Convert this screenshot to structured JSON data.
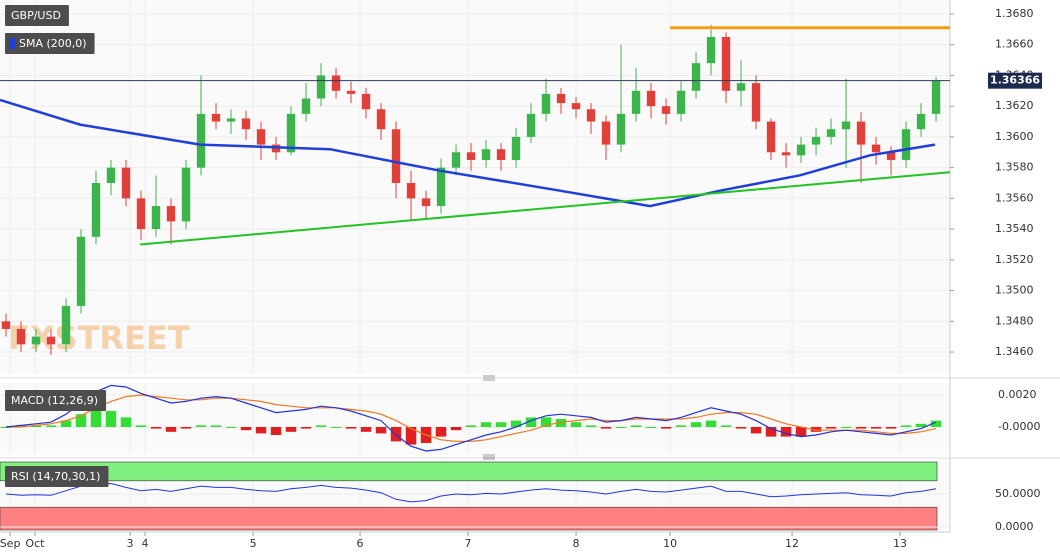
{
  "chart_data": [
    {
      "type": "candlestick",
      "title": "GBP/USD",
      "sma_label": "SMA (200,0)",
      "watermark": "FXSTREET",
      "up_color": "#3cb44b",
      "down_color": "#e0403a",
      "open": [
        1.348,
        1.3475,
        1.3465,
        1.347,
        1.3465,
        1.349,
        1.3535,
        1.357,
        1.358,
        1.356,
        1.354,
        1.3555,
        1.3545,
        1.358,
        1.3615,
        1.361,
        1.3612,
        1.3605,
        1.3595,
        1.359,
        1.3615,
        1.3625,
        1.364,
        1.363,
        1.3628,
        1.3618,
        1.3605,
        1.357,
        1.356,
        1.3555,
        1.358,
        1.359,
        1.3585,
        1.3592,
        1.3585,
        1.36,
        1.3615,
        1.3628,
        1.3622,
        1.3618,
        1.361,
        1.3595,
        1.3615,
        1.363,
        1.362,
        1.3615,
        1.363,
        1.3648,
        1.3665,
        1.363,
        1.3635,
        1.361,
        1.359,
        1.3588,
        1.3595,
        1.36,
        1.3605,
        1.361,
        1.3595,
        1.359,
        1.3585,
        1.3605,
        1.3615
      ],
      "high": [
        1.3485,
        1.348,
        1.3475,
        1.3475,
        1.3495,
        1.354,
        1.3578,
        1.3585,
        1.3585,
        1.3565,
        1.3575,
        1.356,
        1.3585,
        1.364,
        1.3622,
        1.3618,
        1.3617,
        1.361,
        1.36,
        1.362,
        1.3635,
        1.3648,
        1.3645,
        1.3636,
        1.3632,
        1.3622,
        1.361,
        1.3578,
        1.3565,
        1.3586,
        1.3595,
        1.3596,
        1.3598,
        1.3596,
        1.3606,
        1.3622,
        1.3638,
        1.3632,
        1.3626,
        1.3622,
        1.3614,
        1.366,
        1.3645,
        1.3635,
        1.3625,
        1.3636,
        1.3655,
        1.3673,
        1.3668,
        1.365,
        1.364,
        1.3612,
        1.3596,
        1.36,
        1.3606,
        1.3612,
        1.3638,
        1.3616,
        1.36,
        1.3594,
        1.361,
        1.3622,
        1.3639
      ],
      "low": [
        1.347,
        1.346,
        1.346,
        1.3458,
        1.346,
        1.3485,
        1.353,
        1.3562,
        1.3555,
        1.3533,
        1.3535,
        1.353,
        1.354,
        1.3575,
        1.3605,
        1.3602,
        1.3598,
        1.3585,
        1.3585,
        1.3588,
        1.361,
        1.362,
        1.3625,
        1.3622,
        1.3612,
        1.3598,
        1.356,
        1.3545,
        1.3546,
        1.355,
        1.3575,
        1.3578,
        1.358,
        1.3578,
        1.358,
        1.3596,
        1.361,
        1.3615,
        1.3612,
        1.3602,
        1.3585,
        1.359,
        1.361,
        1.3612,
        1.3608,
        1.361,
        1.3625,
        1.364,
        1.3622,
        1.362,
        1.3605,
        1.3585,
        1.358,
        1.3583,
        1.3588,
        1.3595,
        1.358,
        1.357,
        1.3582,
        1.3575,
        1.358,
        1.36,
        1.361
      ],
      "close": [
        1.3475,
        1.3465,
        1.347,
        1.3465,
        1.349,
        1.3535,
        1.357,
        1.358,
        1.356,
        1.354,
        1.3555,
        1.3545,
        1.358,
        1.3615,
        1.361,
        1.3612,
        1.3605,
        1.3595,
        1.359,
        1.3615,
        1.3625,
        1.364,
        1.363,
        1.3628,
        1.3618,
        1.3605,
        1.357,
        1.356,
        1.3555,
        1.358,
        1.359,
        1.3585,
        1.3592,
        1.3585,
        1.36,
        1.3615,
        1.3628,
        1.3622,
        1.3618,
        1.361,
        1.3595,
        1.3615,
        1.363,
        1.362,
        1.3615,
        1.363,
        1.3648,
        1.3665,
        1.363,
        1.3635,
        1.361,
        1.359,
        1.3588,
        1.3595,
        1.36,
        1.3605,
        1.361,
        1.3595,
        1.359,
        1.3585,
        1.3605,
        1.3615,
        1.36366
      ],
      "sma": {
        "color": "#1f3fd6",
        "x": [
          -0.4,
          4.93,
          12.93,
          21.6,
          28.93,
          36.93,
          42.93,
          47.6,
          52.93,
          57.6,
          61.93
        ],
        "values": [
          1.3624,
          1.3608,
          1.3595,
          1.3592,
          1.3578,
          1.3565,
          1.3555,
          1.3565,
          1.3575,
          1.3588,
          1.3595
        ]
      },
      "trendline": {
        "color": "#22c322",
        "x": [
          8.93,
          62.93
        ],
        "values": [
          1.353,
          1.3577
        ]
      },
      "resistance": {
        "color": "#f39c12",
        "x": [
          44.27,
          62.93
        ],
        "values": [
          1.3671,
          1.3671
        ]
      },
      "last_price": 1.36366,
      "xlim": [
        -0.4,
        62.93
      ],
      "ylim": [
        1.34457,
        1.36891
      ],
      "xticks": [
        {
          "value": 0.27,
          "label": "Sep"
        },
        {
          "value": 1.93,
          "label": "Oct"
        },
        {
          "value": 8.27,
          "label": "3"
        },
        {
          "value": 9.27,
          "label": "4"
        },
        {
          "value": 16.47,
          "label": "5"
        },
        {
          "value": 23.6,
          "label": "6"
        },
        {
          "value": 30.8,
          "label": "7"
        },
        {
          "value": 38,
          "label": "8"
        },
        {
          "value": 44.27,
          "label": "10"
        },
        {
          "value": 52.4,
          "label": "12"
        },
        {
          "value": 59.6,
          "label": "13"
        }
      ],
      "yticks": [
        {
          "value": 1.346,
          "label": "1.3460"
        },
        {
          "value": 1.348,
          "label": "1.3480"
        },
        {
          "value": 1.35,
          "label": "1.3500"
        },
        {
          "value": 1.352,
          "label": "1.3520"
        },
        {
          "value": 1.354,
          "label": "1.3540"
        },
        {
          "value": 1.356,
          "label": "1.3560"
        },
        {
          "value": 1.358,
          "label": "1.3580"
        },
        {
          "value": 1.36,
          "label": "1.3600"
        },
        {
          "value": 1.362,
          "label": "1.3620"
        },
        {
          "value": 1.364,
          "label": "1.3640"
        },
        {
          "value": 1.366,
          "label": "1.3660"
        },
        {
          "value": 1.368,
          "label": "1.3680"
        }
      ],
      "grid": true
    },
    {
      "type": "macd",
      "title": "MACD (12,26,9)",
      "macd": {
        "color": "#2233dd",
        "values": [
          0,
          0.0001,
          0.0002,
          0.0003,
          0.0008,
          0.0015,
          0.0022,
          0.0026,
          0.0025,
          0.0021,
          0.0018,
          0.0015,
          0.0016,
          0.0018,
          0.0019,
          0.0018,
          0.0015,
          0.0012,
          0.0009,
          0.001,
          0.0011,
          0.0013,
          0.0012,
          0.001,
          0.0007,
          0.0004,
          -0.0005,
          -0.0012,
          -0.0015,
          -0.0014,
          -0.0011,
          -0.0008,
          -0.0005,
          -0.0003,
          0,
          0.0004,
          0.0007,
          0.0008,
          0.0007,
          0.0006,
          0.0003,
          0.0004,
          0.0006,
          0.0005,
          0.0004,
          0.0006,
          0.0009,
          0.0012,
          0.001,
          0.0008,
          0.0004,
          -0.0001,
          -0.0004,
          -0.0006,
          -0.0005,
          -0.0003,
          -0.0002,
          -0.0003,
          -0.0004,
          -0.0005,
          -0.0003,
          -0.0001,
          0.0003
        ]
      },
      "signal": {
        "color": "#f07820",
        "values": [
          0,
          0,
          0.0001,
          0.0002,
          0.0004,
          0.0007,
          0.0012,
          0.0016,
          0.0019,
          0.002,
          0.0019,
          0.0018,
          0.0017,
          0.0017,
          0.0018,
          0.0018,
          0.0017,
          0.0016,
          0.0014,
          0.0013,
          0.0012,
          0.0012,
          0.0012,
          0.0011,
          0.001,
          0.0008,
          0.0004,
          -0.0001,
          -0.0005,
          -0.0008,
          -0.0009,
          -0.0009,
          -0.0008,
          -0.0006,
          -0.0004,
          -0.0002,
          0.0001,
          0.0003,
          0.0004,
          0.0005,
          0.0004,
          0.0004,
          0.0005,
          0.0005,
          0.0005,
          0.0005,
          0.0006,
          0.0008,
          0.0009,
          0.0009,
          0.0008,
          0.0005,
          0.0002,
          0,
          -0.0002,
          -0.0002,
          -0.0002,
          -0.0002,
          -0.0003,
          -0.0004,
          -0.0004,
          -0.0003,
          -0.0001
        ]
      },
      "histogram": {
        "up_color": "#33dd33",
        "down_color": "#e02020",
        "values": [
          0,
          0.0001,
          0.0001,
          0.0001,
          0.0004,
          0.0008,
          0.001,
          0.001,
          0.0006,
          0.0001,
          -0.0001,
          -0.0003,
          -0.0001,
          0.0001,
          0.0001,
          0,
          -0.0002,
          -0.0004,
          -0.0005,
          -0.0003,
          -0.0001,
          0.0001,
          0,
          -0.0001,
          -0.0003,
          -0.0004,
          -0.0009,
          -0.0011,
          -0.001,
          -0.0006,
          -0.0002,
          0.0001,
          0.0003,
          0.0003,
          0.0004,
          0.0006,
          0.0006,
          0.0005,
          0.0003,
          0.0001,
          -0.0001,
          0,
          0.0001,
          0,
          -0.0001,
          0.0001,
          0.0003,
          0.0004,
          0.0001,
          -0.0001,
          -0.0004,
          -0.0006,
          -0.0006,
          -0.0006,
          -0.0003,
          -0.0001,
          0,
          -0.0001,
          -0.0001,
          -0.0001,
          0.0001,
          0.0002,
          0.0004
        ]
      },
      "ylim": [
        -0.00175,
        0.00275
      ],
      "yticks": [
        {
          "value": 0.002,
          "label": "0.0020"
        },
        {
          "value": 0,
          "label": "-0.0000"
        }
      ]
    },
    {
      "type": "rsi",
      "title": "RSI (14,70,30,1)",
      "color": "#2233dd",
      "values": [
        50,
        48,
        49,
        48,
        55,
        62,
        65,
        66,
        60,
        55,
        57,
        54,
        58,
        62,
        60,
        60,
        57,
        55,
        54,
        58,
        60,
        63,
        60,
        59,
        56,
        52,
        42,
        38,
        40,
        47,
        50,
        49,
        51,
        50,
        53,
        56,
        58,
        56,
        55,
        53,
        50,
        54,
        57,
        54,
        53,
        56,
        59,
        62,
        54,
        54,
        50,
        46,
        47,
        49,
        50,
        51,
        52,
        49,
        48,
        47,
        52,
        54,
        58
      ],
      "overbought": 70,
      "oversold": 30,
      "overbought_color": "#80f080",
      "oversold_color": "#ff8080",
      "ylim": [
        -4.5,
        98.5
      ],
      "yticks": [
        {
          "value": 50,
          "label": "50.0000"
        },
        {
          "value": 0,
          "label": "0.0000"
        }
      ]
    }
  ]
}
